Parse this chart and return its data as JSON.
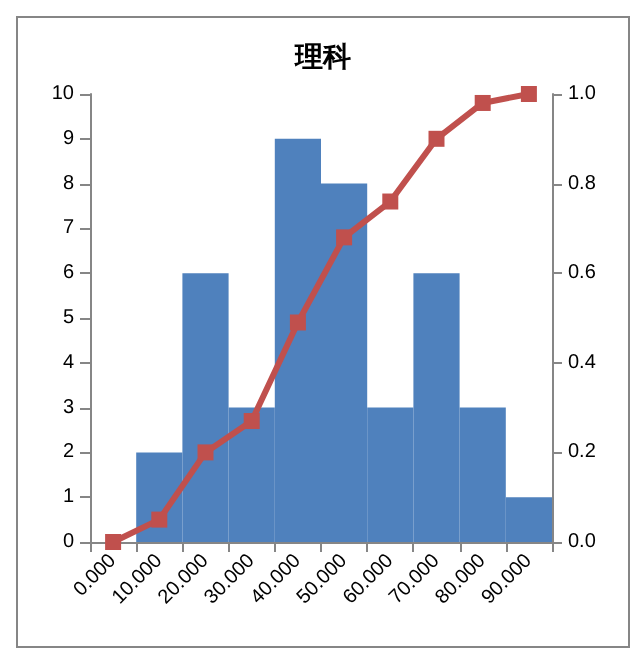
{
  "chart_data": {
    "type": "bar",
    "title": "理科",
    "categories": [
      "0.000",
      "10.000",
      "20.000",
      "30.000",
      "40.000",
      "50.000",
      "60.000",
      "70.000",
      "80.000",
      "90.000"
    ],
    "series": [
      {
        "color": "#4f81bd",
        "values": [
          0,
          2,
          6,
          3,
          9,
          8,
          3,
          6,
          3,
          1
        ]
      },
      {
        "type": "line",
        "axis": "y2",
        "color": "#c0504d",
        "marker": "square",
        "values": [
          0,
          0.05,
          0.2,
          0.27,
          0.49,
          0.68,
          0.76,
          0.9,
          0.98,
          1.0
        ]
      }
    ],
    "ylim": [
      0,
      10
    ],
    "yticks": [
      0,
      1,
      2,
      3,
      4,
      5,
      6,
      7,
      8,
      9,
      10
    ],
    "y2lim": [
      0,
      1
    ],
    "y2ticks": [
      {
        "value": 0,
        "label": "0.0"
      },
      0.2,
      0.4,
      0.6,
      0.8,
      {
        "value": 1,
        "label": "1.0"
      }
    ],
    "grid": false
  }
}
